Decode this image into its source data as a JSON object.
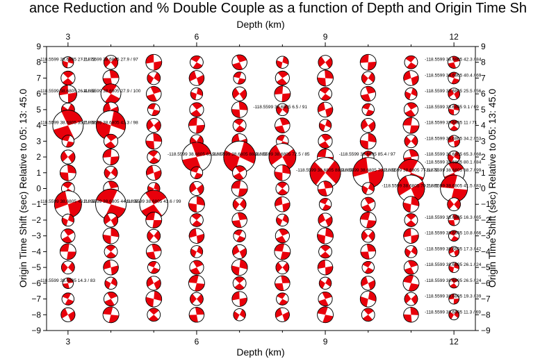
{
  "chart_data": {
    "type": "scatter",
    "title": "ance Reduction and % Double Couple as a function of Depth and Origin Time Sh",
    "xlabel": "Depth (km)",
    "ylabel": "Origin Time Shift (sec) Relative to 05: 13: 45.0",
    "xlim": [
      2.5,
      12.5
    ],
    "ylim": [
      -9,
      9
    ],
    "x_ticks": [
      3,
      6,
      9,
      12
    ],
    "y_ticks": [
      -9,
      -8,
      -7,
      -6,
      -5,
      -4,
      -3,
      -2,
      -1,
      0,
      1,
      2,
      3,
      4,
      5,
      6,
      7,
      8,
      9
    ],
    "depths": [
      3,
      4,
      5,
      6,
      7,
      8,
      9,
      10,
      11,
      12
    ],
    "time_shifts": [
      8,
      7,
      6,
      5,
      4,
      3,
      2,
      1,
      0,
      -1,
      -2,
      -3,
      -4,
      -5,
      -6,
      -7,
      -8
    ],
    "mechanism_label_prefix": "-118.5599 38.6805",
    "beachball_fill": "#e8000b",
    "axes_visible_on": [
      "bottom",
      "top",
      "left",
      "right"
    ],
    "grid": false,
    "points": [
      {
        "depth": 3,
        "shift": 8,
        "vr": 27.2,
        "dc": 73,
        "mag": 0.18
      },
      {
        "depth": 4,
        "shift": 8,
        "vr": 27.9,
        "dc": 97,
        "mag": 0.3
      },
      {
        "depth": 12,
        "shift": 8,
        "vr": 42.3,
        "dc": 84,
        "mag": 0.22
      },
      {
        "depth": 4,
        "shift": 6,
        "vr": 27.9,
        "dc": 100,
        "mag": 0.55
      },
      {
        "depth": 3,
        "shift": 6,
        "vr": 26.4,
        "dc": 88,
        "mag": 0.45
      },
      {
        "depth": 12,
        "shift": 7,
        "vr": 40.4,
        "dc": 69,
        "mag": 0.2
      },
      {
        "depth": 12,
        "shift": 6,
        "vr": 25.5,
        "dc": 56,
        "mag": 0.2
      },
      {
        "depth": 8,
        "shift": 5,
        "vr": 6.5,
        "dc": 91,
        "mag": 0.22
      },
      {
        "depth": 12,
        "shift": 5,
        "vr": 9.1,
        "dc": 69,
        "mag": 0.16
      },
      {
        "depth": 3,
        "shift": 4,
        "vr": 35.7,
        "dc": 98,
        "mag": 1.0
      },
      {
        "depth": 4,
        "shift": 4,
        "vr": 43.3,
        "dc": 98,
        "mag": 0.95
      },
      {
        "depth": 12,
        "shift": 4,
        "vr": 11.0,
        "dc": 71,
        "mag": 0.16
      },
      {
        "depth": 12,
        "shift": 3,
        "vr": 34.2,
        "dc": 53,
        "mag": 0.2
      },
      {
        "depth": 12,
        "shift": 2,
        "vr": 65.3,
        "dc": 68,
        "mag": 0.22
      },
      {
        "depth": 6,
        "shift": 2,
        "vr": 63.9,
        "dc": 87,
        "mag": 0.95
      },
      {
        "depth": 7,
        "shift": 2,
        "vr": 88.9,
        "dc": 83,
        "mag": 1.05
      },
      {
        "depth": 8,
        "shift": 2,
        "vr": 72.5,
        "dc": 85,
        "mag": 0.85
      },
      {
        "depth": 10,
        "shift": 2,
        "vr": 85.4,
        "dc": 97,
        "mag": 0.2
      },
      {
        "depth": 12,
        "shift": 1.5,
        "vr": 80.1,
        "dc": 84,
        "mag": 0.25
      },
      {
        "depth": 9,
        "shift": 1,
        "vr": 88.9,
        "dc": 83,
        "mag": 1.0
      },
      {
        "depth": 10,
        "shift": 1,
        "vr": 70.2,
        "dc": 81,
        "mag": 1.0
      },
      {
        "depth": 11,
        "shift": 1,
        "vr": 77.6,
        "dc": 70,
        "mag": 0.85
      },
      {
        "depth": 12,
        "shift": 1,
        "vr": 68.7,
        "dc": 99,
        "mag": 0.6
      },
      {
        "depth": 11,
        "shift": 0,
        "vr": 70.2,
        "dc": 81,
        "mag": 0.85
      },
      {
        "depth": 12,
        "shift": 0,
        "vr": 41.5,
        "dc": 83,
        "mag": 0.85
      },
      {
        "depth": 3,
        "shift": -1,
        "vr": 42.2,
        "dc": 98,
        "mag": 0.85
      },
      {
        "depth": 4,
        "shift": -1,
        "vr": 44.6,
        "dc": 98,
        "mag": 1.0
      },
      {
        "depth": 5,
        "shift": -1,
        "vr": 43.6,
        "dc": 99,
        "mag": 0.9
      },
      {
        "depth": 12,
        "shift": -2,
        "vr": 16.3,
        "dc": 65,
        "mag": 0.18
      },
      {
        "depth": 12,
        "shift": -3,
        "vr": 10.8,
        "dc": 66,
        "mag": 0.16
      },
      {
        "depth": 12,
        "shift": -4,
        "vr": 17.3,
        "dc": 42,
        "mag": 0.14
      },
      {
        "depth": 12,
        "shift": -5,
        "vr": 26.1,
        "dc": 24,
        "mag": 0.14
      },
      {
        "depth": 12,
        "shift": -6,
        "vr": 26.5,
        "dc": 24,
        "mag": 0.12
      },
      {
        "depth": 12,
        "shift": -7,
        "vr": 19.3,
        "dc": 39,
        "mag": 0.14
      },
      {
        "depth": 12,
        "shift": -8,
        "vr": 11.3,
        "dc": 69,
        "mag": 0.14
      },
      {
        "depth": 3,
        "shift": -6,
        "vr": 14.3,
        "dc": 83,
        "mag": 0.16
      }
    ]
  }
}
